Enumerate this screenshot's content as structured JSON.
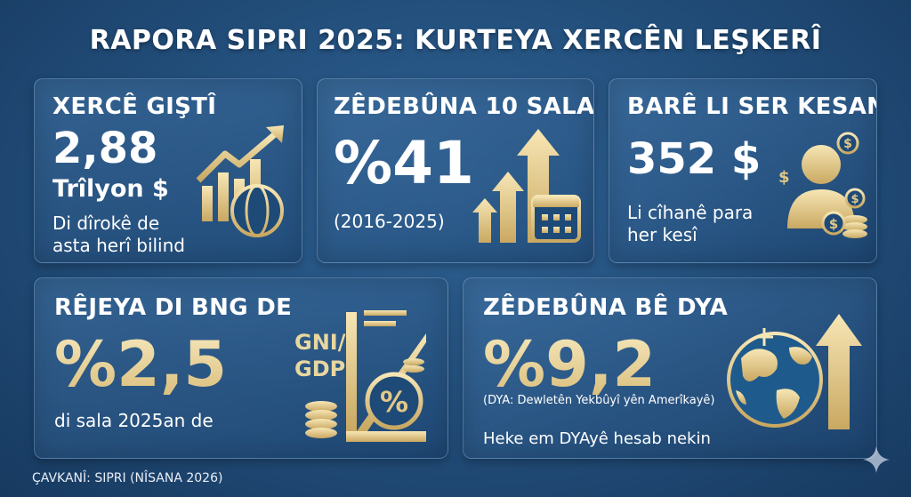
{
  "title": "RAPORA SIPRI 2025: KURTEYA XERCÊN LEŞKERÎ",
  "cards": {
    "total": {
      "title": "XERCÊ GIŞTÎ",
      "value": "2,88",
      "unit": "Trîlyon $",
      "desc_line1": "Di dîrokê de",
      "desc_line2": "asta herî bilind"
    },
    "increase": {
      "title": "ZÊDEBÛNA 10 SALAN",
      "value": "%41",
      "range": "(2016-2025)"
    },
    "per_capita": {
      "title": "BARÊ LI SER KESAN",
      "value": "352 $",
      "desc_line1": "Li cîhanê para",
      "desc_line2": "her kesî"
    },
    "gdp": {
      "title": "RÊJEYA DI BNG DE",
      "value": "%2,5",
      "desc": "di sala 2025an de",
      "icon_text_1": "GNI/",
      "icon_text_2": "GDP"
    },
    "usa": {
      "title": "ZÊDEBÛNA BÊ DYA",
      "value": "%9,2",
      "note": "(DYA: Dewletên Yekbûyî yên Amerîkayê)",
      "desc": "Heke em DYAyê hesab nekin"
    }
  },
  "source": "ÇAVKANÎ: SIPRI (NÎSANA 2026)",
  "colors": {
    "gold": "#e2c888",
    "background": "#214c78",
    "card": "#2d5f93"
  }
}
